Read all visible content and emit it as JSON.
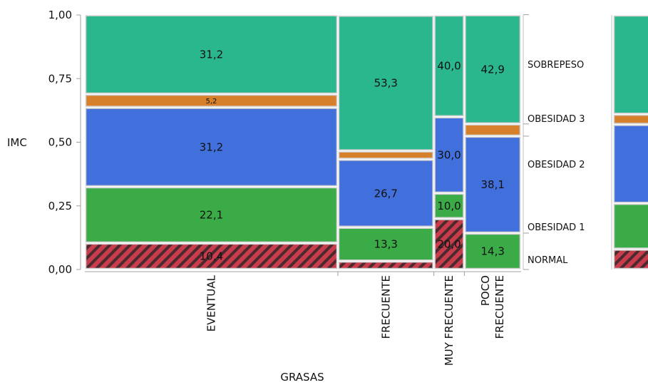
{
  "chart_data": {
    "type": "mosaic",
    "xlabel": "GRASAS",
    "ylabel": "IMC",
    "ylim": [
      0,
      1
    ],
    "yticks": [
      "0,00",
      "0,25",
      "0,50",
      "0,75",
      "1,00"
    ],
    "stack_order": [
      "NORMAL",
      "OBESIDAD 1",
      "OBESIDAD 2",
      "OBESIDAD 3",
      "SOBREPESO"
    ],
    "legend": [
      {
        "name": "SOBREPESO",
        "color": "#2bb78e"
      },
      {
        "name": "OBESIDAD 3",
        "color": "#d7802c"
      },
      {
        "name": "OBESIDAD 2",
        "color": "#4170dc"
      },
      {
        "name": "OBESIDAD 1",
        "color": "#3aab46"
      },
      {
        "name": "NORMAL",
        "color": "#c83c4c",
        "pattern": "diagonal-hatch"
      }
    ],
    "categories": [
      {
        "name": "EVENTUAL",
        "label_lines": [
          "EVENTUAL"
        ],
        "width_share": 0.58,
        "segments": [
          {
            "level": "NORMAL",
            "value": 10.4,
            "label": "10,4"
          },
          {
            "level": "OBESIDAD 1",
            "value": 22.1,
            "label": "22,1"
          },
          {
            "level": "OBESIDAD 2",
            "value": 31.2,
            "label": "31,2"
          },
          {
            "level": "OBESIDAD 3",
            "value": 5.2,
            "label": "5,2"
          },
          {
            "level": "SOBREPESO",
            "value": 31.2,
            "label": "31,2"
          }
        ]
      },
      {
        "name": "FRECUENTE",
        "label_lines": [
          "FRECUENTE"
        ],
        "width_share": 0.22,
        "segments": [
          {
            "level": "NORMAL",
            "value": 3.3,
            "label": ""
          },
          {
            "level": "OBESIDAD 1",
            "value": 13.3,
            "label": "13,3"
          },
          {
            "level": "OBESIDAD 2",
            "value": 26.7,
            "label": "26,7"
          },
          {
            "level": "OBESIDAD 3",
            "value": 3.3,
            "label": ""
          },
          {
            "level": "SOBREPESO",
            "value": 53.3,
            "label": "53,3"
          }
        ]
      },
      {
        "name": "MUY FRECUENTE",
        "label_lines": [
          "MUY FRECUENTE"
        ],
        "width_share": 0.07,
        "segments": [
          {
            "level": "NORMAL",
            "value": 20.0,
            "label": "20,0"
          },
          {
            "level": "OBESIDAD 1",
            "value": 10.0,
            "label": "10,0"
          },
          {
            "level": "OBESIDAD 2",
            "value": 30.0,
            "label": "30,0"
          },
          {
            "level": "OBESIDAD 3",
            "value": 0.0,
            "label": ""
          },
          {
            "level": "SOBREPESO",
            "value": 40.0,
            "label": "40,0"
          }
        ]
      },
      {
        "name": "POCO FRECUENTE",
        "label_lines": [
          "POCO",
          "FRECUENTE"
        ],
        "width_share": 0.13,
        "segments": [
          {
            "level": "NORMAL",
            "value": 0.0,
            "label": ""
          },
          {
            "level": "OBESIDAD 1",
            "value": 14.3,
            "label": "14,3"
          },
          {
            "level": "OBESIDAD 2",
            "value": 38.1,
            "label": "38,1"
          },
          {
            "level": "OBESIDAD 3",
            "value": 4.8,
            "label": ""
          },
          {
            "level": "SOBREPESO",
            "value": 42.9,
            "label": "42,9"
          }
        ]
      }
    ],
    "overall": {
      "segments": [
        {
          "level": "NORMAL",
          "value": 8.0
        },
        {
          "level": "OBESIDAD 1",
          "value": 18.0
        },
        {
          "level": "OBESIDAD 2",
          "value": 31.0
        },
        {
          "level": "OBESIDAD 3",
          "value": 4.0
        },
        {
          "level": "SOBREPESO",
          "value": 39.0
        }
      ]
    }
  }
}
